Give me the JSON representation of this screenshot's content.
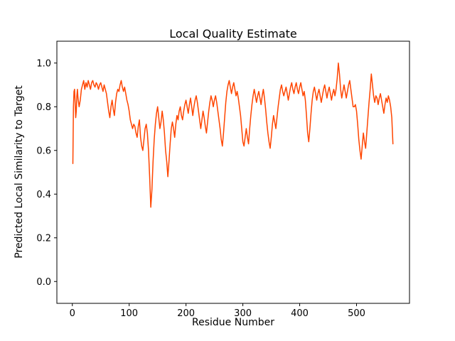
{
  "figure": {
    "background": "#ffffff"
  },
  "chart_data": {
    "type": "line",
    "title": "Local Quality Estimate",
    "xlabel": "Residue Number",
    "ylabel": "Predicted Local Similarity to Target",
    "line_color": "#ff4500",
    "axis_color": "#000000",
    "grid": false,
    "legend": null,
    "xlim": [
      -27.2,
      593.2
    ],
    "ylim": [
      -0.1,
      1.1
    ],
    "x_ticks": [
      0,
      100,
      200,
      300,
      400,
      500
    ],
    "x_tick_labels": [
      "0",
      "100",
      "200",
      "300",
      "400",
      "500"
    ],
    "y_ticks": [
      0.0,
      0.2,
      0.4,
      0.6,
      0.8,
      1.0
    ],
    "y_tick_labels": [
      "0.0",
      "0.2",
      "0.4",
      "0.6",
      "0.8",
      "1.0"
    ],
    "points": [
      [
        1,
        0.54
      ],
      [
        2,
        0.8
      ],
      [
        3,
        0.87
      ],
      [
        4,
        0.88
      ],
      [
        5,
        0.82
      ],
      [
        6,
        0.75
      ],
      [
        7,
        0.78
      ],
      [
        8,
        0.85
      ],
      [
        9,
        0.88
      ],
      [
        10,
        0.84
      ],
      [
        12,
        0.8
      ],
      [
        14,
        0.83
      ],
      [
        16,
        0.88
      ],
      [
        18,
        0.9
      ],
      [
        20,
        0.92
      ],
      [
        22,
        0.88
      ],
      [
        24,
        0.91
      ],
      [
        26,
        0.89
      ],
      [
        28,
        0.92
      ],
      [
        30,
        0.9
      ],
      [
        32,
        0.88
      ],
      [
        34,
        0.91
      ],
      [
        36,
        0.92
      ],
      [
        38,
        0.9
      ],
      [
        40,
        0.89
      ],
      [
        42,
        0.91
      ],
      [
        44,
        0.9
      ],
      [
        46,
        0.88
      ],
      [
        48,
        0.9
      ],
      [
        50,
        0.91
      ],
      [
        52,
        0.89
      ],
      [
        54,
        0.87
      ],
      [
        56,
        0.9
      ],
      [
        58,
        0.88
      ],
      [
        60,
        0.86
      ],
      [
        62,
        0.82
      ],
      [
        64,
        0.78
      ],
      [
        66,
        0.75
      ],
      [
        68,
        0.8
      ],
      [
        70,
        0.83
      ],
      [
        72,
        0.79
      ],
      [
        74,
        0.76
      ],
      [
        76,
        0.82
      ],
      [
        78,
        0.86
      ],
      [
        80,
        0.88
      ],
      [
        82,
        0.87
      ],
      [
        84,
        0.9
      ],
      [
        86,
        0.92
      ],
      [
        88,
        0.89
      ],
      [
        90,
        0.87
      ],
      [
        92,
        0.89
      ],
      [
        94,
        0.86
      ],
      [
        96,
        0.83
      ],
      [
        98,
        0.81
      ],
      [
        100,
        0.78
      ],
      [
        102,
        0.74
      ],
      [
        104,
        0.72
      ],
      [
        106,
        0.7
      ],
      [
        108,
        0.72
      ],
      [
        110,
        0.71
      ],
      [
        112,
        0.68
      ],
      [
        114,
        0.66
      ],
      [
        116,
        0.71
      ],
      [
        118,
        0.74
      ],
      [
        120,
        0.66
      ],
      [
        122,
        0.62
      ],
      [
        124,
        0.6
      ],
      [
        126,
        0.65
      ],
      [
        128,
        0.7
      ],
      [
        130,
        0.72
      ],
      [
        132,
        0.68
      ],
      [
        134,
        0.6
      ],
      [
        136,
        0.48
      ],
      [
        138,
        0.34
      ],
      [
        140,
        0.42
      ],
      [
        142,
        0.55
      ],
      [
        144,
        0.65
      ],
      [
        146,
        0.72
      ],
      [
        148,
        0.77
      ],
      [
        150,
        0.8
      ],
      [
        152,
        0.75
      ],
      [
        154,
        0.7
      ],
      [
        156,
        0.73
      ],
      [
        158,
        0.78
      ],
      [
        160,
        0.74
      ],
      [
        162,
        0.68
      ],
      [
        164,
        0.6
      ],
      [
        166,
        0.55
      ],
      [
        168,
        0.48
      ],
      [
        170,
        0.55
      ],
      [
        172,
        0.63
      ],
      [
        174,
        0.7
      ],
      [
        176,
        0.73
      ],
      [
        178,
        0.7
      ],
      [
        180,
        0.66
      ],
      [
        182,
        0.72
      ],
      [
        184,
        0.76
      ],
      [
        186,
        0.74
      ],
      [
        188,
        0.78
      ],
      [
        190,
        0.8
      ],
      [
        192,
        0.76
      ],
      [
        194,
        0.74
      ],
      [
        196,
        0.78
      ],
      [
        198,
        0.81
      ],
      [
        200,
        0.83
      ],
      [
        202,
        0.8
      ],
      [
        204,
        0.77
      ],
      [
        206,
        0.81
      ],
      [
        208,
        0.84
      ],
      [
        210,
        0.8
      ],
      [
        212,
        0.76
      ],
      [
        214,
        0.8
      ],
      [
        216,
        0.83
      ],
      [
        218,
        0.85
      ],
      [
        220,
        0.82
      ],
      [
        222,
        0.78
      ],
      [
        224,
        0.74
      ],
      [
        226,
        0.7
      ],
      [
        228,
        0.74
      ],
      [
        230,
        0.78
      ],
      [
        232,
        0.75
      ],
      [
        234,
        0.71
      ],
      [
        236,
        0.68
      ],
      [
        238,
        0.73
      ],
      [
        240,
        0.78
      ],
      [
        242,
        0.82
      ],
      [
        244,
        0.85
      ],
      [
        246,
        0.83
      ],
      [
        248,
        0.8
      ],
      [
        250,
        0.83
      ],
      [
        252,
        0.85
      ],
      [
        254,
        0.82
      ],
      [
        256,
        0.78
      ],
      [
        258,
        0.74
      ],
      [
        260,
        0.7
      ],
      [
        262,
        0.65
      ],
      [
        264,
        0.62
      ],
      [
        266,
        0.68
      ],
      [
        268,
        0.75
      ],
      [
        270,
        0.82
      ],
      [
        272,
        0.87
      ],
      [
        274,
        0.9
      ],
      [
        276,
        0.92
      ],
      [
        278,
        0.89
      ],
      [
        280,
        0.86
      ],
      [
        282,
        0.89
      ],
      [
        284,
        0.91
      ],
      [
        286,
        0.88
      ],
      [
        288,
        0.85
      ],
      [
        290,
        0.87
      ],
      [
        292,
        0.84
      ],
      [
        294,
        0.8
      ],
      [
        296,
        0.76
      ],
      [
        298,
        0.7
      ],
      [
        300,
        0.64
      ],
      [
        302,
        0.62
      ],
      [
        304,
        0.66
      ],
      [
        306,
        0.7
      ],
      [
        308,
        0.66
      ],
      [
        310,
        0.63
      ],
      [
        312,
        0.7
      ],
      [
        314,
        0.76
      ],
      [
        316,
        0.81
      ],
      [
        318,
        0.85
      ],
      [
        320,
        0.88
      ],
      [
        322,
        0.85
      ],
      [
        324,
        0.82
      ],
      [
        326,
        0.85
      ],
      [
        328,
        0.87
      ],
      [
        330,
        0.84
      ],
      [
        332,
        0.81
      ],
      [
        334,
        0.85
      ],
      [
        336,
        0.88
      ],
      [
        338,
        0.84
      ],
      [
        340,
        0.79
      ],
      [
        342,
        0.73
      ],
      [
        344,
        0.68
      ],
      [
        346,
        0.64
      ],
      [
        348,
        0.61
      ],
      [
        350,
        0.66
      ],
      [
        352,
        0.72
      ],
      [
        354,
        0.76
      ],
      [
        356,
        0.73
      ],
      [
        358,
        0.7
      ],
      [
        360,
        0.75
      ],
      [
        362,
        0.8
      ],
      [
        364,
        0.84
      ],
      [
        366,
        0.88
      ],
      [
        368,
        0.9
      ],
      [
        370,
        0.87
      ],
      [
        372,
        0.85
      ],
      [
        374,
        0.87
      ],
      [
        376,
        0.89
      ],
      [
        378,
        0.86
      ],
      [
        380,
        0.83
      ],
      [
        382,
        0.86
      ],
      [
        384,
        0.89
      ],
      [
        386,
        0.91
      ],
      [
        388,
        0.88
      ],
      [
        390,
        0.86
      ],
      [
        392,
        0.89
      ],
      [
        394,
        0.91
      ],
      [
        396,
        0.88
      ],
      [
        398,
        0.86
      ],
      [
        400,
        0.89
      ],
      [
        402,
        0.91
      ],
      [
        404,
        0.88
      ],
      [
        406,
        0.85
      ],
      [
        408,
        0.87
      ],
      [
        410,
        0.83
      ],
      [
        412,
        0.76
      ],
      [
        414,
        0.68
      ],
      [
        416,
        0.64
      ],
      [
        418,
        0.7
      ],
      [
        420,
        0.77
      ],
      [
        422,
        0.83
      ],
      [
        424,
        0.87
      ],
      [
        426,
        0.89
      ],
      [
        428,
        0.86
      ],
      [
        430,
        0.83
      ],
      [
        432,
        0.86
      ],
      [
        434,
        0.88
      ],
      [
        436,
        0.85
      ],
      [
        438,
        0.82
      ],
      [
        440,
        0.85
      ],
      [
        442,
        0.88
      ],
      [
        444,
        0.9
      ],
      [
        446,
        0.87
      ],
      [
        448,
        0.84
      ],
      [
        450,
        0.87
      ],
      [
        452,
        0.89
      ],
      [
        454,
        0.86
      ],
      [
        456,
        0.83
      ],
      [
        458,
        0.86
      ],
      [
        460,
        0.88
      ],
      [
        462,
        0.85
      ],
      [
        464,
        0.88
      ],
      [
        466,
        0.93
      ],
      [
        468,
        1.0
      ],
      [
        470,
        0.95
      ],
      [
        472,
        0.88
      ],
      [
        474,
        0.84
      ],
      [
        476,
        0.87
      ],
      [
        478,
        0.9
      ],
      [
        480,
        0.87
      ],
      [
        482,
        0.84
      ],
      [
        484,
        0.87
      ],
      [
        486,
        0.9
      ],
      [
        488,
        0.92
      ],
      [
        490,
        0.88
      ],
      [
        492,
        0.84
      ],
      [
        494,
        0.8
      ],
      [
        496,
        0.8
      ],
      [
        498,
        0.81
      ],
      [
        500,
        0.78
      ],
      [
        502,
        0.72
      ],
      [
        504,
        0.65
      ],
      [
        506,
        0.6
      ],
      [
        508,
        0.56
      ],
      [
        510,
        0.62
      ],
      [
        512,
        0.68
      ],
      [
        514,
        0.64
      ],
      [
        516,
        0.61
      ],
      [
        518,
        0.68
      ],
      [
        520,
        0.75
      ],
      [
        522,
        0.82
      ],
      [
        524,
        0.88
      ],
      [
        526,
        0.95
      ],
      [
        528,
        0.9
      ],
      [
        530,
        0.85
      ],
      [
        532,
        0.82
      ],
      [
        534,
        0.85
      ],
      [
        536,
        0.84
      ],
      [
        538,
        0.81
      ],
      [
        540,
        0.84
      ],
      [
        542,
        0.86
      ],
      [
        544,
        0.83
      ],
      [
        546,
        0.8
      ],
      [
        548,
        0.77
      ],
      [
        550,
        0.81
      ],
      [
        552,
        0.84
      ],
      [
        554,
        0.82
      ],
      [
        556,
        0.85
      ],
      [
        558,
        0.83
      ],
      [
        560,
        0.8
      ],
      [
        562,
        0.75
      ],
      [
        564,
        0.63
      ]
    ]
  }
}
